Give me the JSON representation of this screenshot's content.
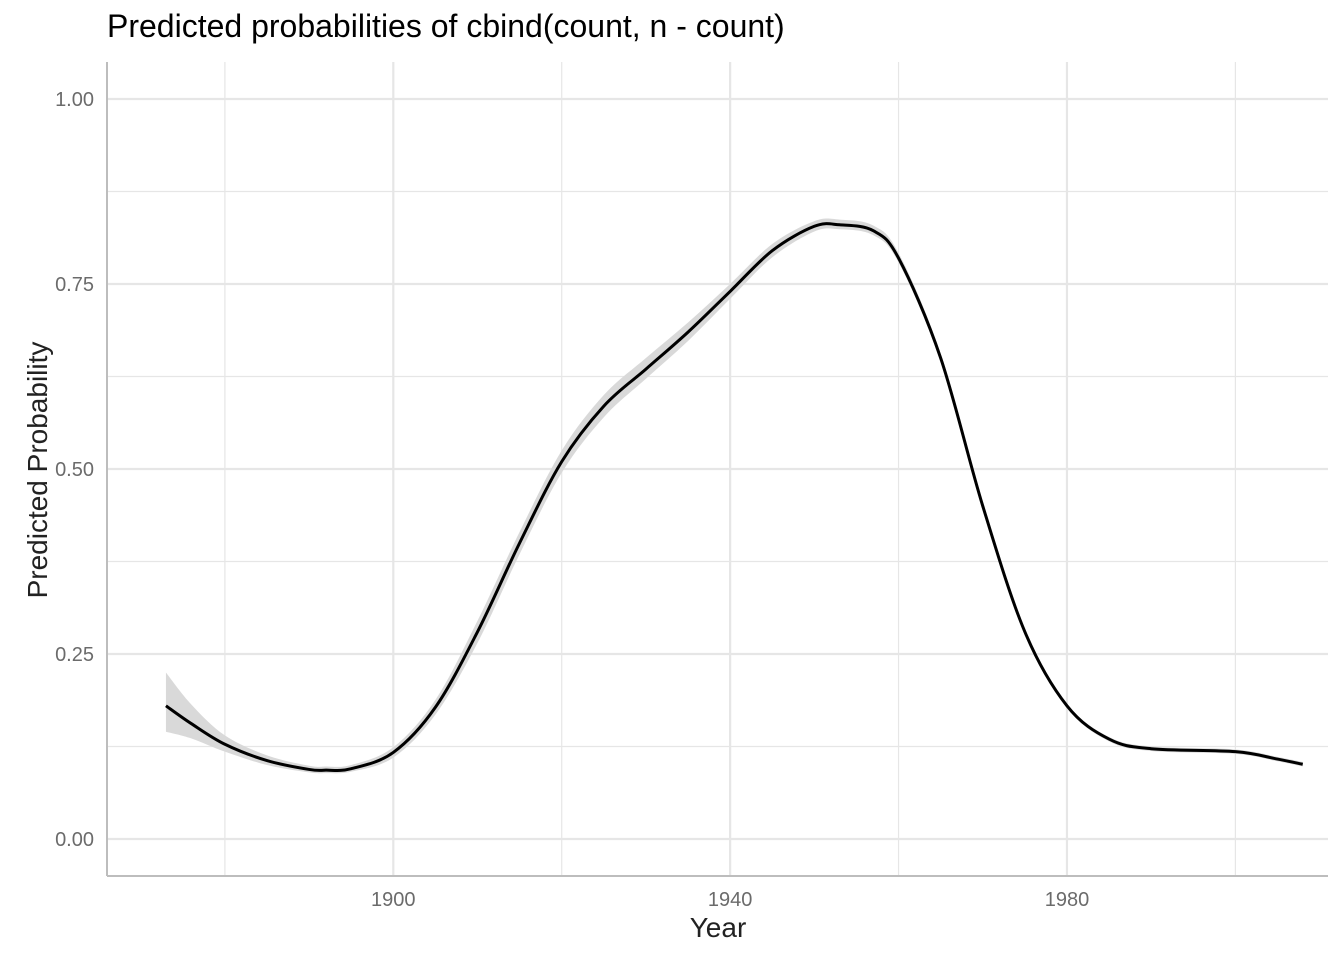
{
  "chart_data": {
    "type": "line",
    "title": "Predicted probabilities of cbind(count, n - count)",
    "xlabel": "Year",
    "ylabel": "Predicted Probability",
    "xlim": [
      1866,
      2011
    ],
    "ylim": [
      -0.05,
      1.05
    ],
    "x_ticks": [
      1900,
      1940,
      1980
    ],
    "y_ticks": [
      0.0,
      0.25,
      0.5,
      0.75,
      1.0
    ],
    "y_tick_labels": [
      "0.00",
      "0.25",
      "0.50",
      "0.75",
      "1.00"
    ],
    "x_tick_labels": [
      "1900",
      "1940",
      "1980"
    ],
    "grid": true,
    "legend": "none",
    "colors": {
      "line": "#000000",
      "ribbon": "#d9d9d9",
      "grid": "#e6e6e6",
      "axis": "#bdbdbd"
    },
    "series": [
      {
        "x": [
          1873,
          1876,
          1880,
          1885,
          1890,
          1892,
          1895,
          1900,
          1905,
          1910,
          1915,
          1920,
          1925,
          1930,
          1935,
          1940,
          1945,
          1950,
          1953,
          1957,
          1960,
          1965,
          1970,
          1975,
          1980,
          1985,
          1990,
          2000,
          2005,
          2008
        ],
        "y": [
          0.18,
          0.156,
          0.128,
          0.106,
          0.094,
          0.093,
          0.095,
          0.117,
          0.178,
          0.28,
          0.4,
          0.51,
          0.585,
          0.635,
          0.685,
          0.74,
          0.795,
          0.828,
          0.83,
          0.822,
          0.785,
          0.65,
          0.45,
          0.28,
          0.18,
          0.135,
          0.122,
          0.118,
          0.108,
          0.101
        ],
        "lower": [
          0.145,
          0.136,
          0.118,
          0.1,
          0.09,
          0.089,
          0.091,
          0.11,
          0.168,
          0.265,
          0.385,
          0.495,
          0.57,
          0.622,
          0.673,
          0.73,
          0.786,
          0.821,
          0.824,
          0.816,
          0.779,
          0.645,
          0.446,
          0.277,
          0.177,
          0.132,
          0.119,
          0.115,
          0.105,
          0.098
        ],
        "upper": [
          0.225,
          0.182,
          0.14,
          0.113,
          0.099,
          0.098,
          0.1,
          0.124,
          0.188,
          0.295,
          0.415,
          0.525,
          0.6,
          0.65,
          0.698,
          0.75,
          0.804,
          0.835,
          0.837,
          0.829,
          0.792,
          0.656,
          0.454,
          0.283,
          0.183,
          0.138,
          0.125,
          0.121,
          0.111,
          0.104
        ]
      }
    ]
  }
}
